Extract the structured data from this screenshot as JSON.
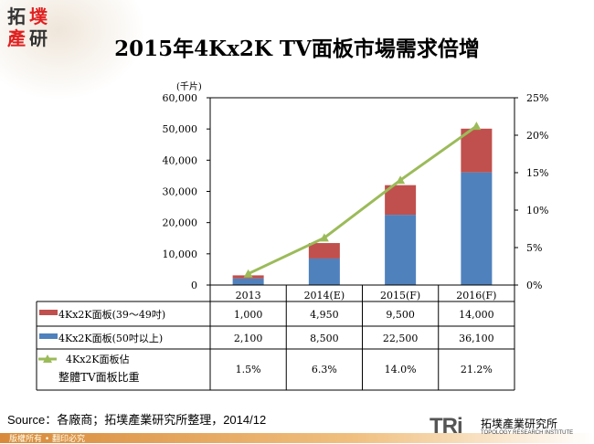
{
  "title": "2015年4Kx2K TV面板市場需求倍增",
  "logo": {
    "chars": [
      "拓",
      "墣",
      "產",
      "研"
    ]
  },
  "chart_data": {
    "type": "bar+line",
    "categories": [
      "2013",
      "2014(E)",
      "2015(F)",
      "2016(F)"
    ],
    "ylabel": "(千片)",
    "ylim": [
      0,
      60000
    ],
    "y2lim": [
      0,
      25
    ],
    "yticks": [
      "0",
      "10,000",
      "20,000",
      "30,000",
      "40,000",
      "50,000",
      "60,000"
    ],
    "y2ticks": [
      "0%",
      "5%",
      "10%",
      "15%",
      "20%",
      "25%"
    ],
    "series": [
      {
        "name": "4Kx2K面板(50吋以上)",
        "kind": "bar",
        "color": "#4f81bd",
        "values": [
          2100,
          8500,
          22500,
          36100
        ],
        "labels": [
          "2,100",
          "8,500",
          "22,500",
          "36,100"
        ]
      },
      {
        "name": "4Kx2K面板(39～49吋)",
        "kind": "bar",
        "color": "#c0504d",
        "values": [
          1000,
          4950,
          9500,
          14000
        ],
        "labels": [
          "1,000",
          "4,950",
          "9,500",
          "14,000"
        ]
      },
      {
        "name": "4Kx2K面板佔整體TV面板比重",
        "name_lines": [
          "4Kx2K面板佔",
          "整體TV面板比重"
        ],
        "kind": "line",
        "axis": "right",
        "color": "#9bbb59",
        "values": [
          1.5,
          6.3,
          14.0,
          21.2
        ],
        "labels": [
          "1.5%",
          "6.3%",
          "14.0%",
          "21.2%"
        ]
      }
    ]
  },
  "source": "Source：各廠商；拓墣產業研究所整理，2014/12",
  "footer": "版權所有 • 翻印必究",
  "brand": {
    "mark": "TRi",
    "cn": "拓墣產業研究所",
    "en": "TOPOLOGY RESEARCH INSTITUTE"
  }
}
